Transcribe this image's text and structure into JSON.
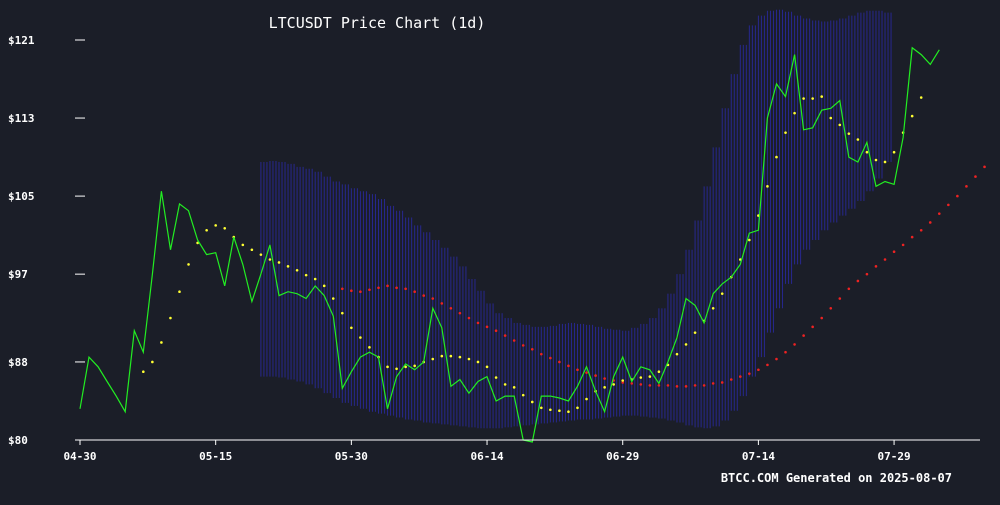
{
  "chart_data": {
    "type": "line",
    "title": "LTCUSDT Price Chart (1d)",
    "footer": "BTCC.COM Generated on 2025-08-07",
    "xlabel": "",
    "ylabel": "",
    "x_tick_labels": [
      "04-30",
      "05-15",
      "05-30",
      "06-14",
      "06-29",
      "07-14",
      "07-29"
    ],
    "x_tick_day_index": [
      0,
      15,
      30,
      45,
      60,
      75,
      90
    ],
    "y_tick_labels": [
      "$80",
      "$88",
      "$97",
      "$105",
      "$113",
      "$121"
    ],
    "y_tick_values": [
      80,
      88,
      97,
      105,
      113,
      121
    ],
    "ylim": [
      80,
      121
    ],
    "xlim": [
      0,
      99.5
    ],
    "colors": {
      "background": "#1b1e28",
      "price": "#22ee22",
      "sma_fast": "#ffff33",
      "sma_slow": "#ee2222",
      "band": "#2b2bb0",
      "axis": "#ffffff"
    },
    "series": [
      {
        "name": "Close",
        "style": "line",
        "values": [
          83.2,
          88.5,
          87.5,
          86.0,
          84.5,
          82.9,
          91.2,
          89.0,
          97.0,
          105.5,
          99.5,
          104.2,
          103.5,
          100.5,
          99.0,
          99.2,
          95.8,
          100.8,
          98.0,
          94.2,
          97.0,
          100.0,
          94.8,
          95.2,
          95.0,
          94.5,
          95.8,
          94.8,
          92.7,
          85.3,
          87.0,
          88.5,
          89.0,
          88.5,
          83.2,
          86.5,
          87.8,
          87.2,
          88.0,
          93.5,
          91.5,
          85.5,
          86.2,
          84.8,
          86.0,
          86.5,
          84.0,
          84.5,
          84.5,
          80.0,
          79.8,
          84.5,
          84.5,
          84.3,
          84.0,
          85.5,
          87.5,
          85.0,
          82.9,
          86.5,
          88.5,
          86.0,
          87.5,
          87.2,
          85.8,
          88.0,
          90.5,
          94.5,
          93.8,
          92.0,
          95.0,
          96.0,
          96.7,
          98.0,
          101.2,
          101.5,
          113.0,
          116.5,
          115.2,
          119.5,
          111.8,
          112.0,
          113.8,
          114.0,
          114.8,
          109.0,
          108.5,
          110.5,
          106.0,
          106.5,
          106.2,
          111.0,
          120.2,
          119.5,
          118.5,
          120.0
        ]
      },
      {
        "name": "SMA fast",
        "style": "dots",
        "start_index": 7,
        "values": [
          87.0,
          88.0,
          90.0,
          92.5,
          95.2,
          98.0,
          100.2,
          101.5,
          102.0,
          101.7,
          100.8,
          100.0,
          99.5,
          99.0,
          98.5,
          98.2,
          97.8,
          97.4,
          96.9,
          96.5,
          95.8,
          94.5,
          93.0,
          91.5,
          90.5,
          89.5,
          88.5,
          87.5,
          87.3,
          87.5,
          87.6,
          88.0,
          88.3,
          88.6,
          88.6,
          88.5,
          88.3,
          88.0,
          87.5,
          86.4,
          85.7,
          85.4,
          84.6,
          83.9,
          83.3,
          83.1,
          83.0,
          82.9,
          83.3,
          84.2,
          85.0,
          85.4,
          85.7,
          86.1,
          86.2,
          86.4,
          86.5,
          87.0,
          87.7,
          88.8,
          89.8,
          91.0,
          92.2,
          93.5,
          95.0,
          96.7,
          98.5,
          100.5,
          103.0,
          106.0,
          109.0,
          111.5,
          113.5,
          115.0,
          115.0,
          115.2,
          113.0,
          112.3,
          111.4,
          110.8,
          109.5,
          108.7,
          108.5,
          109.5,
          111.5,
          113.2,
          115.1
        ]
      },
      {
        "name": "SMA slow",
        "style": "dots",
        "start_index": 29,
        "values": [
          95.5,
          95.3,
          95.2,
          95.4,
          95.6,
          95.8,
          95.6,
          95.5,
          95.2,
          94.8,
          94.5,
          94.0,
          93.5,
          93.0,
          92.5,
          92.0,
          91.6,
          91.2,
          90.7,
          90.2,
          89.7,
          89.3,
          88.8,
          88.4,
          88.0,
          87.6,
          87.2,
          86.9,
          86.6,
          86.3,
          86.1,
          85.9,
          85.8,
          85.7,
          85.6,
          85.6,
          85.6,
          85.5,
          85.5,
          85.6,
          85.6,
          85.8,
          85.9,
          86.2,
          86.5,
          86.8,
          87.2,
          87.7,
          88.3,
          89.0,
          89.8,
          90.7,
          91.6,
          92.5,
          93.5,
          94.5,
          95.5,
          96.3,
          97.0,
          97.8,
          98.5,
          99.3,
          100.0,
          100.8,
          101.5,
          102.3,
          103.2,
          104.1,
          105.0,
          106.0,
          107.0,
          108.0
        ]
      },
      {
        "name": "Bollinger band",
        "style": "band",
        "start_index": 20,
        "upper": [
          108.5,
          108.6,
          108.5,
          108.3,
          108.0,
          107.8,
          107.5,
          107.0,
          106.5,
          106.2,
          105.8,
          105.5,
          105.2,
          104.7,
          104.0,
          103.5,
          102.8,
          102.0,
          101.3,
          100.5,
          99.7,
          98.8,
          97.8,
          96.5,
          95.3,
          94.0,
          93.0,
          92.5,
          92.0,
          91.8,
          91.6,
          91.6,
          91.7,
          91.9,
          92.0,
          91.9,
          91.8,
          91.6,
          91.4,
          91.3,
          91.2,
          91.5,
          91.9,
          92.5,
          93.5,
          95.0,
          97.0,
          99.5,
          102.5,
          106.0,
          110.0,
          114.0,
          117.5,
          120.5,
          122.5,
          123.5,
          124.0,
          124.1,
          123.9,
          123.5,
          123.2,
          123.0,
          122.9,
          123.0,
          123.2,
          123.5,
          123.8,
          124.0,
          124.0,
          123.8
        ],
        "lower": [
          86.5,
          86.5,
          86.4,
          86.2,
          86.0,
          85.7,
          85.3,
          84.8,
          84.3,
          83.8,
          83.5,
          83.2,
          82.9,
          82.7,
          82.5,
          82.3,
          82.1,
          82.0,
          81.8,
          81.7,
          81.6,
          81.5,
          81.4,
          81.3,
          81.2,
          81.2,
          81.2,
          81.3,
          81.4,
          81.5,
          81.6,
          81.7,
          81.8,
          81.9,
          82.0,
          82.1,
          82.1,
          82.2,
          82.3,
          82.4,
          82.5,
          82.5,
          82.4,
          82.3,
          82.2,
          82.0,
          81.8,
          81.5,
          81.3,
          81.2,
          81.4,
          82.0,
          83.0,
          84.5,
          86.5,
          88.5,
          91.0,
          93.5,
          96.0,
          98.0,
          99.5,
          100.5,
          101.5,
          102.3,
          103.0,
          103.7,
          104.5,
          105.5,
          106.8,
          108.5
        ]
      }
    ]
  }
}
